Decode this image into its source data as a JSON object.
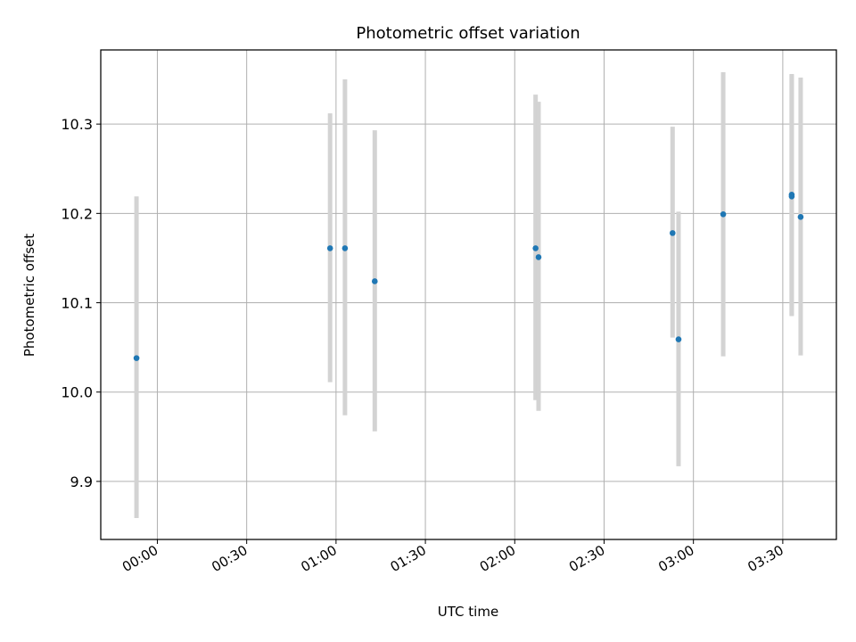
{
  "chart_data": {
    "type": "scatter",
    "title": "Photometric offset variation",
    "xlabel": "UTC time",
    "ylabel": "Photometric offset",
    "grid": true,
    "legend": "none",
    "xlim": [
      "23:41",
      "03:48"
    ],
    "ylim": [
      9.835,
      10.383
    ],
    "x_ticks": [
      "00:00",
      "00:30",
      "01:00",
      "01:30",
      "02:00",
      "02:30",
      "03:00",
      "03:30"
    ],
    "y_ticks": [
      9.9,
      10.0,
      10.1,
      10.2,
      10.3
    ],
    "y_tick_labels": [
      "9.9",
      "10.0",
      "10.1",
      "10.2",
      "10.3"
    ],
    "series": [
      {
        "marker_color": "#1f77b4",
        "errorbar_color": "#d3d3d3",
        "points": [
          {
            "time": "23:53",
            "y": 10.038,
            "yerr_low": 9.859,
            "yerr_high": 10.219
          },
          {
            "time": "00:58",
            "y": 10.161,
            "yerr_low": 10.011,
            "yerr_high": 10.312
          },
          {
            "time": "01:03",
            "y": 10.161,
            "yerr_low": 9.974,
            "yerr_high": 10.35
          },
          {
            "time": "01:13",
            "y": 10.124,
            "yerr_low": 9.956,
            "yerr_high": 10.293
          },
          {
            "time": "02:07",
            "y": 10.161,
            "yerr_low": 9.991,
            "yerr_high": 10.333
          },
          {
            "time": "02:08",
            "y": 10.151,
            "yerr_low": 9.979,
            "yerr_high": 10.325
          },
          {
            "time": "02:53",
            "y": 10.178,
            "yerr_low": 10.061,
            "yerr_high": 10.297
          },
          {
            "time": "02:55",
            "y": 10.059,
            "yerr_low": 9.917,
            "yerr_high": 10.202
          },
          {
            "time": "03:10",
            "y": 10.199,
            "yerr_low": 10.04,
            "yerr_high": 10.358
          },
          {
            "time": "03:33",
            "y": 10.219,
            "yerr_low": 10.085,
            "yerr_high": 10.356
          },
          {
            "time": "03:33",
            "y": 10.221,
            "yerr_low": 10.086,
            "yerr_high": 10.355
          },
          {
            "time": "03:36",
            "y": 10.196,
            "yerr_low": 10.041,
            "yerr_high": 10.352
          }
        ]
      }
    ]
  }
}
